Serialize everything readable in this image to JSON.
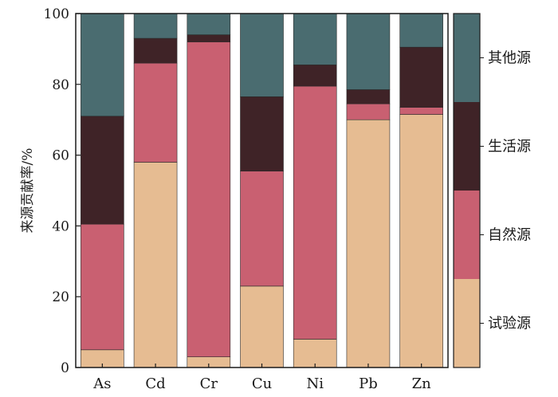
{
  "chart_data": {
    "type": "bar",
    "stacked": true,
    "categories": [
      "As",
      "Cd",
      "Cr",
      "Cu",
      "Ni",
      "Pb",
      "Zn"
    ],
    "series": [
      {
        "name": "试验源",
        "color": "#E6BC92",
        "values": [
          5,
          58,
          3,
          23,
          8,
          70,
          71.5
        ]
      },
      {
        "name": "自然源",
        "color": "#C96071",
        "values": [
          35.5,
          28,
          89,
          32.5,
          71.5,
          4.5,
          2
        ]
      },
      {
        "name": "生活源",
        "color": "#3F2327",
        "values": [
          30.5,
          7,
          2,
          21,
          6,
          4,
          17
        ]
      },
      {
        "name": "其他源",
        "color": "#4A6C70",
        "values": [
          29,
          7,
          6,
          23.5,
          14.5,
          21.5,
          9.5
        ]
      }
    ],
    "ylabel": "来源贡献率/%",
    "xlabel": "",
    "ylim": [
      0,
      100
    ],
    "yticks": [
      0,
      20,
      40,
      60,
      80,
      100
    ],
    "grid": false,
    "legend_position": "right",
    "legend_order": [
      "其他源",
      "生活源",
      "自然源",
      "试验源"
    ]
  }
}
